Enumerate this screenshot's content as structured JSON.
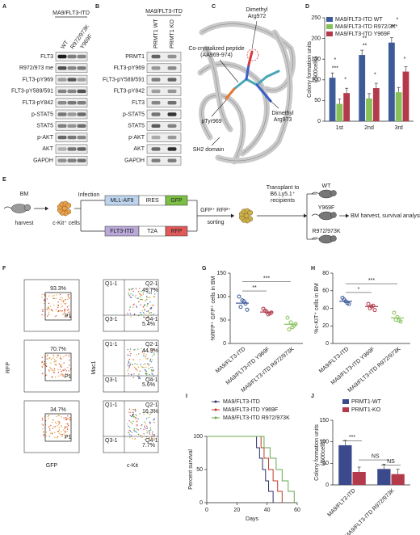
{
  "panel_a": {
    "label": "A",
    "header": "MA9/FLT3-ITD",
    "columns": [
      "WT",
      "R972/973K",
      "Y969F"
    ],
    "rows": [
      "FLT3",
      "R972/973 me",
      "FLT3-pY969",
      "FLT3-pY589/591",
      "FLT3-pY842",
      "p-STAT5",
      "STAT5",
      "p-AKT",
      "AKT",
      "GAPDH"
    ]
  },
  "panel_b": {
    "label": "B",
    "header": "MA9/FLT3-ITD",
    "columns": [
      "PRMT1 WT",
      "PRMT1 KO"
    ],
    "rows": [
      "PRMT1",
      "FLT3-pY969",
      "FLT3-pY589/591",
      "FLT3-pY842",
      "FLT3",
      "p-STAT5",
      "STAT5",
      "p-AKT",
      "AKT",
      "GAPDH"
    ]
  },
  "panel_c": {
    "label": "C",
    "annotations": [
      [
        "Dimethyl",
        "Arg972"
      ],
      [
        "Co-crystalized peptide",
        "(AA969-974)"
      ],
      [
        "pTyr969"
      ],
      [
        "Dimethyl",
        "Arg973"
      ],
      [
        "SH2 domain"
      ]
    ]
  },
  "panel_d": {
    "label": "D",
    "chart": {
      "type": "bar",
      "ylabel": [
        "Colony formation units",
        "(/500cells)"
      ],
      "categories": [
        "1st",
        "2nd",
        "3rd"
      ],
      "series": [
        {
          "name": "MA9/FLT3-ITD WT",
          "color": "#3d5a99",
          "values": [
            105,
            160,
            190
          ]
        },
        {
          "name": "MA9/FLT3-ITD R972/3K",
          "color": "#86c15a",
          "values": [
            42,
            55,
            70
          ]
        },
        {
          "name": "MA9/FLT3-ITD Y969F",
          "color": "#b23a4b",
          "values": [
            68,
            80,
            120
          ]
        }
      ],
      "ylim": [
        0,
        250
      ],
      "yticks": [
        0,
        50,
        100,
        150,
        200,
        250
      ],
      "significance": [
        "*",
        "***",
        "*",
        "**",
        "**",
        "*",
        "*",
        "***",
        "*"
      ]
    }
  },
  "panel_e": {
    "label": "E",
    "bm": "BM",
    "harvest": "harvest",
    "infection": "Infection",
    "ckit_cells": "c-Kit⁺ cells",
    "vector1": [
      "MLL-AF9",
      "IRES",
      "GFP"
    ],
    "vector2": [
      "FLT3-ITD",
      "T2A",
      "RFP"
    ],
    "sorted": "GFP⁺ RFP⁺",
    "sorting": "sorting",
    "transplant": [
      "Transplant to",
      "B6.Ly5.1⁺",
      "recipients"
    ],
    "groups": [
      "WT",
      "Y969F",
      "R972/973K"
    ],
    "outcome": "BM harvest, survival analysis"
  },
  "panel_f": {
    "label": "F",
    "y_axis_left": "RFP",
    "x_axis_left": "GFP",
    "gate": "P1",
    "left_percent": [
      "93.3%",
      "70.7%",
      "34.7%"
    ],
    "y_axis_right": "Mac1",
    "x_axis_right": "c-Kit",
    "quadrants": [
      "Q1-1",
      "Q2-1",
      "Q3-1",
      "Q4-1"
    ],
    "right_percent": [
      [
        "49.7%",
        "5.4%"
      ],
      [
        "44.9%",
        "5.6%"
      ],
      [
        "16.3%",
        "7.7%"
      ]
    ]
  },
  "panel_g": {
    "label": "G",
    "chart": {
      "type": "dot",
      "ylabel": "%RFP⁺ GFP⁺ cells in BM",
      "categories": [
        "MA9/FLT3-ITD",
        "MA9/FLT3-ITD Y969F",
        "MA9/FLT3-ITD R972/973K"
      ],
      "color": [
        "#3d5a99",
        "#b23a4b",
        "#86c15a"
      ],
      "points": [
        [
          100,
          92,
          85,
          78,
          90,
          72
        ],
        [
          74,
          68,
          64,
          70,
          62,
          66
        ],
        [
          55,
          45,
          38,
          30,
          35,
          42
        ]
      ],
      "means": [
        86,
        67,
        41
      ],
      "ylim": [
        0,
        150
      ],
      "yticks": [
        0,
        50,
        100,
        150
      ],
      "significance": [
        "**",
        "***"
      ]
    }
  },
  "panel_h": {
    "label": "H",
    "chart": {
      "type": "dot",
      "ylabel": "%c-KIT⁺ cells in BM",
      "categories": [
        "MA9/FLT3-ITD",
        "MA9/FLT3-ITD Y969F",
        "MA9/FLT3-ITD R972/973K"
      ],
      "color": [
        "#3d5a99",
        "#b23a4b",
        "#86c15a"
      ],
      "points": [
        [
          52,
          48,
          45,
          50,
          46
        ],
        [
          45,
          42,
          38,
          40,
          43
        ],
        [
          35,
          30,
          25,
          27,
          26
        ]
      ],
      "means": [
        48,
        42,
        29
      ],
      "ylim": [
        0,
        80
      ],
      "yticks": [
        0,
        20,
        40,
        60,
        80
      ],
      "significance": [
        "*",
        "***"
      ]
    }
  },
  "panel_i": {
    "label": "I",
    "chart": {
      "type": "survival",
      "ylabel": "Percent survival",
      "xlabel": "Days",
      "xlim": [
        0,
        60
      ],
      "xticks": [
        0,
        20,
        40,
        60
      ],
      "ylim": [
        0,
        100
      ],
      "yticks": [
        0,
        50,
        100
      ],
      "series": [
        {
          "name": "MA9/FLT3-ITD",
          "color": "#2b2f6b",
          "x": [
            0,
            33,
            35,
            37,
            39,
            41,
            44
          ],
          "values": [
            100,
            83,
            67,
            50,
            33,
            17,
            0
          ]
        },
        {
          "name": "MA9/FLT3-ITD Y969F",
          "color": "#c0392b",
          "x": [
            0,
            36,
            38,
            41,
            44,
            47,
            50
          ],
          "values": [
            100,
            83,
            67,
            50,
            33,
            17,
            0
          ]
        },
        {
          "name": "MA9/FLT3-ITD R972/973K",
          "color": "#6aa84f",
          "x": [
            0,
            38,
            42,
            46,
            50,
            54,
            58
          ],
          "values": [
            100,
            83,
            67,
            50,
            33,
            17,
            0
          ]
        }
      ]
    }
  },
  "panel_j": {
    "label": "J",
    "chart": {
      "type": "bar",
      "ylabel": [
        "Colony formation units",
        "(/500cells)"
      ],
      "categories": [
        "MA9/FLT3-ITD",
        "MA9/FLT3-ITD R972/973K"
      ],
      "series": [
        {
          "name": "PRMT1-WT",
          "color": "#3b4a8c",
          "values": [
            92,
            37
          ]
        },
        {
          "name": "PRMT1-KO",
          "color": "#b33a4a",
          "values": [
            30,
            25
          ]
        }
      ],
      "ylim": [
        0,
        150
      ],
      "yticks": [
        0,
        50,
        100,
        150
      ],
      "significance": [
        "***",
        "NS",
        "NS"
      ]
    }
  }
}
